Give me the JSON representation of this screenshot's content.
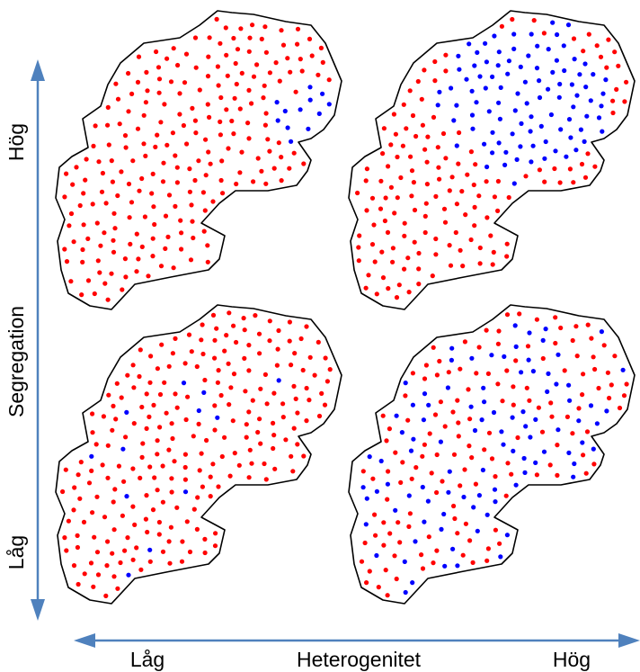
{
  "axes": {
    "vertical": {
      "title": "Segregation",
      "high_label": "Hög",
      "low_label": "Låg"
    },
    "horizontal": {
      "title": "Heterogenitet",
      "low_label": "Låg",
      "high_label": "Hög"
    }
  },
  "colors": {
    "arrow": "#4f81bd",
    "outline": "#000000",
    "group_a": "#ff0000",
    "group_b": "#0000ff"
  },
  "panels": [
    {
      "id": "high-segregation-low-heterogeneity",
      "segregation": "Hög",
      "heterogeneity": "Låg",
      "blue_share": 0.05,
      "pattern": "clustered"
    },
    {
      "id": "high-segregation-high-heterogeneity",
      "segregation": "Hög",
      "heterogeneity": "Hög",
      "blue_share": 0.4,
      "pattern": "clustered"
    },
    {
      "id": "low-segregation-low-heterogeneity",
      "segregation": "Låg",
      "heterogeneity": "Låg",
      "blue_share": 0.05,
      "pattern": "dispersed"
    },
    {
      "id": "low-segregation-high-heterogeneity",
      "segregation": "Låg",
      "heterogeneity": "Hög",
      "blue_share": 0.4,
      "pattern": "dispersed"
    }
  ]
}
